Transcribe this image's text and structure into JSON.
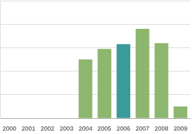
{
  "chart_data": {
    "type": "bar",
    "categories": [
      "2000",
      "2001",
      "2002",
      "2003",
      "2004",
      "2005",
      "2006",
      "2007",
      "2008",
      "2009"
    ],
    "values": [
      null,
      null,
      null,
      null,
      2.5,
      2.95,
      3.15,
      3.8,
      3.2,
      0.5
    ],
    "colors": [
      "#8db66e",
      "#8db66e",
      "#8db66e",
      "#8db66e",
      "#8db66e",
      "#8db66e",
      "#3a9c9a",
      "#8db66e",
      "#8db66e",
      "#8db66e"
    ],
    "ylim": [
      0,
      5
    ],
    "yticks": [
      0,
      1,
      2,
      3,
      4,
      5
    ],
    "grid": true,
    "tick_labels": "x"
  }
}
